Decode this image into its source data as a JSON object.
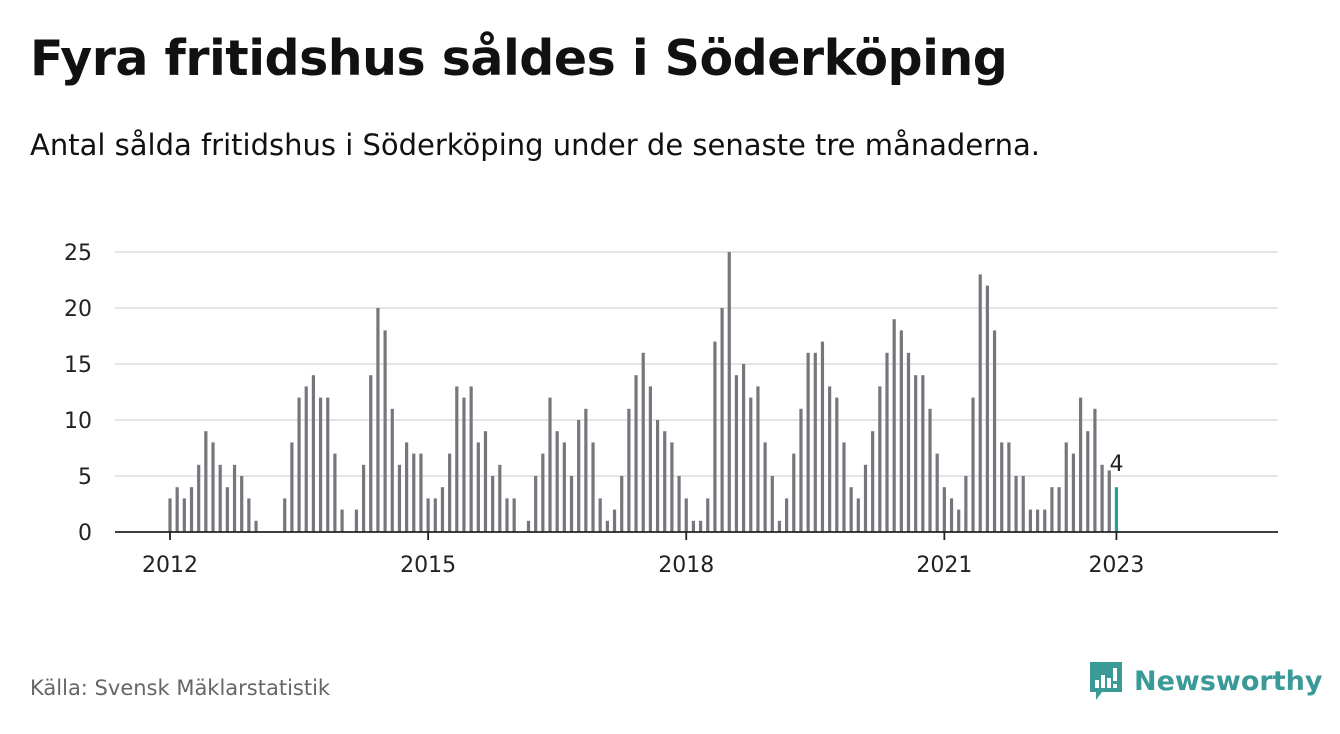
{
  "title": "Fyra fritidshus såldes i Söderköping",
  "subtitle": "Antal sålda fritidshus i Söderköping under de senaste tre månaderna.",
  "source": "Källa: Svensk Mäklarstatistik",
  "brand": {
    "name": "Newsworthy",
    "icon": "newsworthy-logo-icon"
  },
  "colors": {
    "bar": "#77767c",
    "highlight": "#2a9a94",
    "grid": "#dcdcdc",
    "brand": "#3a9a98"
  },
  "chart_data": {
    "type": "bar",
    "x_start": "2012-01",
    "x_end": "2023-01",
    "values": [
      3,
      4,
      3,
      4,
      6,
      9,
      8,
      6,
      4,
      6,
      5,
      3,
      1,
      0,
      0,
      0,
      3,
      8,
      12,
      13,
      14,
      12,
      12,
      7,
      2,
      0,
      2,
      6,
      14,
      20,
      18,
      11,
      6,
      8,
      7,
      7,
      3,
      3,
      4,
      7,
      13,
      12,
      13,
      8,
      9,
      5,
      6,
      3,
      3,
      0,
      1,
      5,
      7,
      12,
      9,
      8,
      5,
      10,
      11,
      8,
      3,
      1,
      2,
      5,
      11,
      14,
      16,
      13,
      10,
      9,
      8,
      5,
      3,
      1,
      1,
      3,
      17,
      20,
      25,
      14,
      15,
      12,
      13,
      8,
      5,
      1,
      3,
      7,
      11,
      16,
      16,
      17,
      13,
      12,
      8,
      4,
      3,
      6,
      9,
      13,
      16,
      19,
      18,
      16,
      14,
      14,
      11,
      7,
      4,
      3,
      2,
      5,
      12,
      23,
      22,
      18,
      8,
      8,
      5,
      5,
      2,
      2,
      2,
      4,
      4,
      8,
      7,
      12,
      9,
      11,
      6,
      5.5,
      4
    ],
    "highlight_last": true,
    "last_label": "4",
    "ylim": [
      0,
      25
    ],
    "yticks": [
      0,
      5,
      10,
      15,
      20,
      25
    ],
    "xticks": [
      "2012",
      "2015",
      "2018",
      "2021",
      "2023"
    ],
    "grid": true,
    "xlabel": "",
    "ylabel": ""
  }
}
